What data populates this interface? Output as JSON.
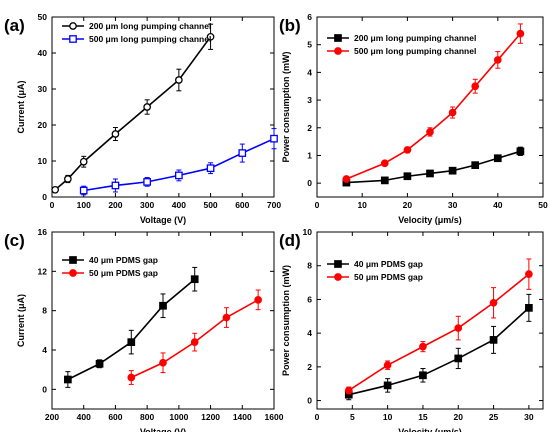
{
  "chart_data": [
    {
      "panel": "(a)",
      "type": "line",
      "xlabel": "Voltage (V)",
      "ylabel": "Current (μA)",
      "xlim": [
        0,
        700
      ],
      "ylim": [
        0,
        50
      ],
      "xticks": [
        0,
        100,
        200,
        300,
        400,
        500,
        600,
        700
      ],
      "yticks": [
        0,
        10,
        20,
        30,
        40,
        50
      ],
      "legend_position": "top-left",
      "series": [
        {
          "name": "200 μm long pumping channel",
          "color": "#000000",
          "marker": "open-circle",
          "x": [
            10,
            50,
            100,
            200,
            300,
            400,
            500
          ],
          "y": [
            2.0,
            5.0,
            9.8,
            17.5,
            25.0,
            32.5,
            44.5
          ],
          "err": [
            0.6,
            1.0,
            1.5,
            1.8,
            2.0,
            3.0,
            3.5
          ]
        },
        {
          "name": "500 μm long pumping channel",
          "color": "#0000ff",
          "marker": "open-square",
          "x": [
            100,
            200,
            300,
            400,
            500,
            600,
            700
          ],
          "y": [
            1.8,
            3.2,
            4.2,
            6.0,
            8.0,
            12.2,
            16.2
          ],
          "err": [
            1.2,
            1.8,
            1.2,
            1.5,
            1.5,
            2.5,
            2.8
          ]
        }
      ]
    },
    {
      "panel": "(b)",
      "type": "line",
      "xlabel": "Velocity (μm/s)",
      "ylabel": "Power consumption (mW)",
      "xlim": [
        0,
        50
      ],
      "ylim": [
        -0.5,
        6.0
      ],
      "xticks": [
        0,
        10,
        20,
        30,
        40,
        50
      ],
      "yticks": [
        0,
        1,
        2,
        3,
        4,
        5,
        6
      ],
      "legend_position": "top-left",
      "series": [
        {
          "name": "200 μm long pumping channel",
          "color": "#000000",
          "marker": "square",
          "x": [
            6.5,
            15,
            20,
            25,
            30,
            35,
            40,
            45
          ],
          "y": [
            0.02,
            0.1,
            0.25,
            0.35,
            0.45,
            0.65,
            0.9,
            1.15
          ],
          "err": [
            0.02,
            0.03,
            0.04,
            0.05,
            0.08,
            0.1,
            0.1,
            0.15
          ]
        },
        {
          "name": "500 μm long pumping channel",
          "color": "#ff0000",
          "marker": "circle",
          "x": [
            6.5,
            15,
            20,
            25,
            30,
            35,
            40,
            45
          ],
          "y": [
            0.15,
            0.72,
            1.2,
            1.85,
            2.55,
            3.5,
            4.45,
            5.4
          ],
          "err": [
            0.05,
            0.06,
            0.1,
            0.15,
            0.2,
            0.25,
            0.3,
            0.35
          ]
        }
      ]
    },
    {
      "panel": "(c)",
      "type": "line",
      "xlabel": "Voltage (V)",
      "ylabel": "Current (μA)",
      "xlim": [
        200,
        1600
      ],
      "ylim": [
        -2,
        16
      ],
      "xticks": [
        200,
        400,
        600,
        800,
        1000,
        1200,
        1400,
        1600
      ],
      "yticks": [
        0,
        4,
        8,
        12,
        16
      ],
      "legend_position": "top-left",
      "series": [
        {
          "name": "40 μm PDMS gap",
          "color": "#000000",
          "marker": "square",
          "x": [
            300,
            500,
            700,
            900,
            1100
          ],
          "y": [
            1.0,
            2.6,
            4.8,
            8.5,
            11.2
          ],
          "err": [
            0.8,
            0.4,
            1.2,
            1.2,
            1.2
          ]
        },
        {
          "name": "50 μm PDMS gap",
          "color": "#ff0000",
          "marker": "circle",
          "x": [
            700,
            900,
            1100,
            1300,
            1500
          ],
          "y": [
            1.2,
            2.7,
            4.8,
            7.3,
            9.1
          ],
          "err": [
            0.7,
            1.0,
            0.9,
            1.0,
            1.0
          ]
        }
      ]
    },
    {
      "panel": "(d)",
      "type": "line",
      "xlabel": "Velocity (μm/s)",
      "ylabel": "Power consumption (mW)",
      "xlim": [
        0,
        32
      ],
      "ylim": [
        -0.5,
        10
      ],
      "xticks": [
        0,
        5,
        10,
        15,
        20,
        25,
        30
      ],
      "yticks": [
        0,
        2,
        4,
        6,
        8,
        10
      ],
      "legend_position": "top-left",
      "series": [
        {
          "name": "40 μm PDMS gap",
          "color": "#000000",
          "marker": "square",
          "x": [
            4.5,
            10,
            15,
            20,
            25,
            30
          ],
          "y": [
            0.35,
            0.9,
            1.5,
            2.5,
            3.6,
            5.5
          ],
          "err": [
            0.3,
            0.4,
            0.4,
            0.6,
            0.8,
            0.8
          ]
        },
        {
          "name": "50 μm PDMS gap",
          "color": "#ff0000",
          "marker": "circle",
          "x": [
            4.5,
            10,
            15,
            20,
            25,
            30
          ],
          "y": [
            0.6,
            2.1,
            3.2,
            4.3,
            5.8,
            7.5
          ],
          "err": [
            0.2,
            0.25,
            0.3,
            0.7,
            0.9,
            0.9
          ]
        }
      ]
    }
  ]
}
